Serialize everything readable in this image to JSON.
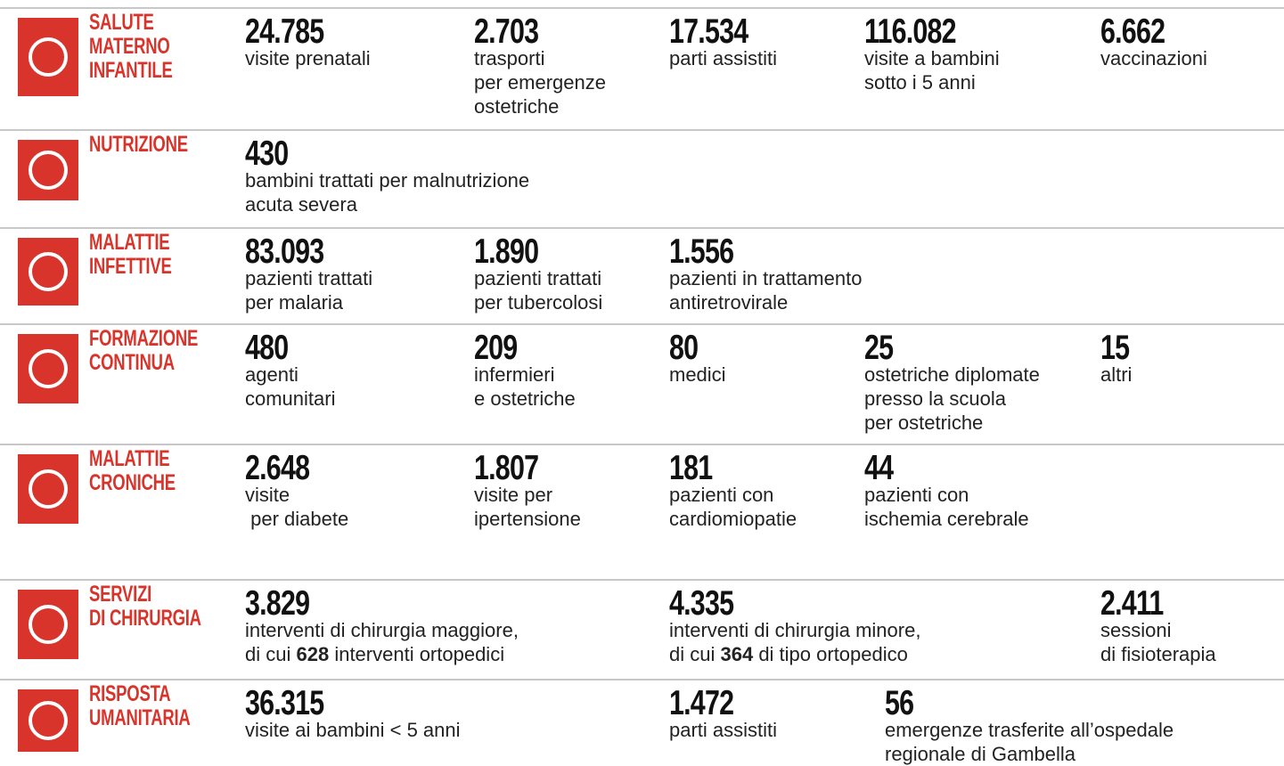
{
  "rows": [
    {
      "title": [
        "SALUTE",
        "MATERNO",
        "INFANTILE"
      ],
      "stats": [
        {
          "number": "24.785",
          "lines": [
            "visite prenatali"
          ]
        },
        {
          "number": "2.703",
          "lines": [
            "trasporti",
            "per emergenze",
            "ostetriche"
          ]
        },
        {
          "number": "17.534",
          "lines": [
            "parti assistiti"
          ]
        },
        {
          "number": "116.082",
          "lines": [
            "visite a bambini",
            "sotto i 5 anni"
          ]
        },
        {
          "number": "6.662",
          "lines": [
            "vaccinazioni"
          ]
        }
      ]
    },
    {
      "title": [
        "NUTRIZIONE"
      ],
      "stats": [
        {
          "number": "430",
          "lines": [
            "bambini trattati per malnutrizione",
            "acuta severa"
          ]
        }
      ]
    },
    {
      "title": [
        "MALATTIE",
        "INFETTIVE"
      ],
      "stats": [
        {
          "number": "83.093",
          "lines": [
            "pazienti trattati",
            "per malaria"
          ]
        },
        {
          "number": "1.890",
          "lines": [
            "pazienti trattati",
            "per tubercolosi"
          ]
        },
        {
          "number": "1.556",
          "lines": [
            "pazienti in trattamento",
            "antiretrovirale"
          ]
        }
      ]
    },
    {
      "title": [
        "FORMAZIONE",
        "CONTINUA"
      ],
      "stats": [
        {
          "number": "480",
          "lines": [
            "agenti",
            "comunitari"
          ]
        },
        {
          "number": "209",
          "lines": [
            "infermieri",
            "e ostetriche"
          ]
        },
        {
          "number": "80",
          "lines": [
            "medici"
          ]
        },
        {
          "number": "25",
          "lines": [
            "ostetriche diplomate",
            "presso la scuola",
            "per ostetriche"
          ]
        },
        {
          "number": "15",
          "lines": [
            "altri"
          ]
        }
      ]
    },
    {
      "title": [
        "MALATTIE",
        "CRONICHE"
      ],
      "stats": [
        {
          "number": "2.648",
          "lines": [
            "visite",
            " per diabete"
          ]
        },
        {
          "number": "1.807",
          "lines": [
            "visite per",
            "ipertensione"
          ]
        },
        {
          "number": "181",
          "lines": [
            "pazienti con",
            "cardiomiopatie"
          ]
        },
        {
          "number": "44",
          "lines": [
            "pazienti con",
            "ischemia cerebrale"
          ]
        }
      ]
    },
    {
      "title": [
        "SERVIZI",
        "DI CHIRURGIA"
      ],
      "stats": [
        {
          "number": "3.829",
          "lines": [
            [
              "interventi di chirurgia maggiore,"
            ],
            [
              "di cui ",
              {
                "b": "628"
              },
              " interventi ortopedici"
            ]
          ]
        },
        {
          "number": "4.335",
          "lines": [
            [
              "interventi di chirurgia minore,"
            ],
            [
              "di cui ",
              {
                "b": "364"
              },
              " di tipo ortopedico"
            ]
          ]
        },
        {
          "number": "2.411",
          "lines": [
            "sessioni",
            "di fisioterapia"
          ]
        }
      ]
    },
    {
      "title": [
        "RISPOSTA",
        "UMANITARIA"
      ],
      "stats": [
        {
          "number": "36.315",
          "lines": [
            "visite ai bambini < 5 anni"
          ]
        },
        {
          "number": "1.472",
          "lines": [
            "parti assistiti"
          ]
        },
        {
          "number": "56",
          "lines": [
            "emergenze trasferite all’ospedale",
            "regionale di Gambella"
          ]
        }
      ]
    }
  ]
}
